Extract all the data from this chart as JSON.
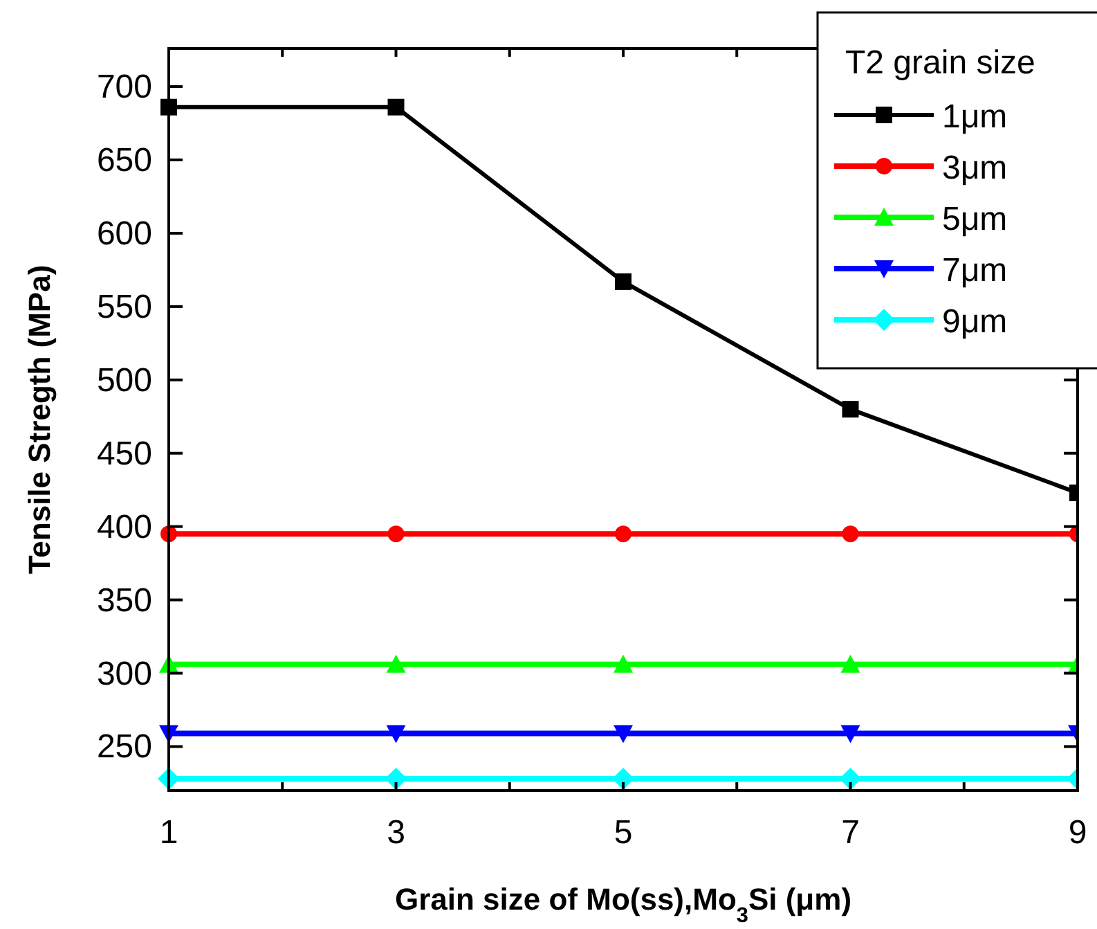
{
  "chart_data": {
    "type": "line",
    "xlabel": "Grain size of Mo(ss),Mo$_{3}$Si (μm)",
    "ylabel": "Tensile Stregth (MPa)",
    "legend_title": "T2 grain size",
    "x": [
      1,
      3,
      5,
      7,
      9
    ],
    "xlim": [
      1,
      9
    ],
    "xticks": [
      1,
      {
        "value": 2,
        "label": null
      },
      3,
      {
        "value": 4,
        "label": null
      },
      5,
      {
        "value": 6,
        "label": null
      },
      7,
      {
        "value": 8,
        "label": null
      },
      9
    ],
    "ylim": [
      220,
      726
    ],
    "yticks": [
      250,
      300,
      350,
      400,
      450,
      500,
      550,
      600,
      650,
      700
    ],
    "legend": "top right",
    "line_style": "solid",
    "series": [
      {
        "name": "1μm",
        "color": "#000000",
        "marker": "square",
        "values": [
          686,
          686,
          567,
          480,
          423
        ]
      },
      {
        "name": "3μm",
        "color": "#ff0000",
        "marker": "circle",
        "values": [
          395,
          395,
          395,
          395,
          395
        ]
      },
      {
        "name": "5μm",
        "color": "#00ff00",
        "marker": "triangle",
        "values": [
          306,
          306,
          306,
          306,
          306
        ]
      },
      {
        "name": "7μm",
        "color": "#0000ff",
        "marker": "triangle-down",
        "values": [
          259,
          259,
          259,
          259,
          259
        ]
      },
      {
        "name": "9μm",
        "color": "#00ffff",
        "marker": "diamond",
        "values": [
          228,
          228,
          228,
          228,
          228
        ]
      }
    ]
  }
}
